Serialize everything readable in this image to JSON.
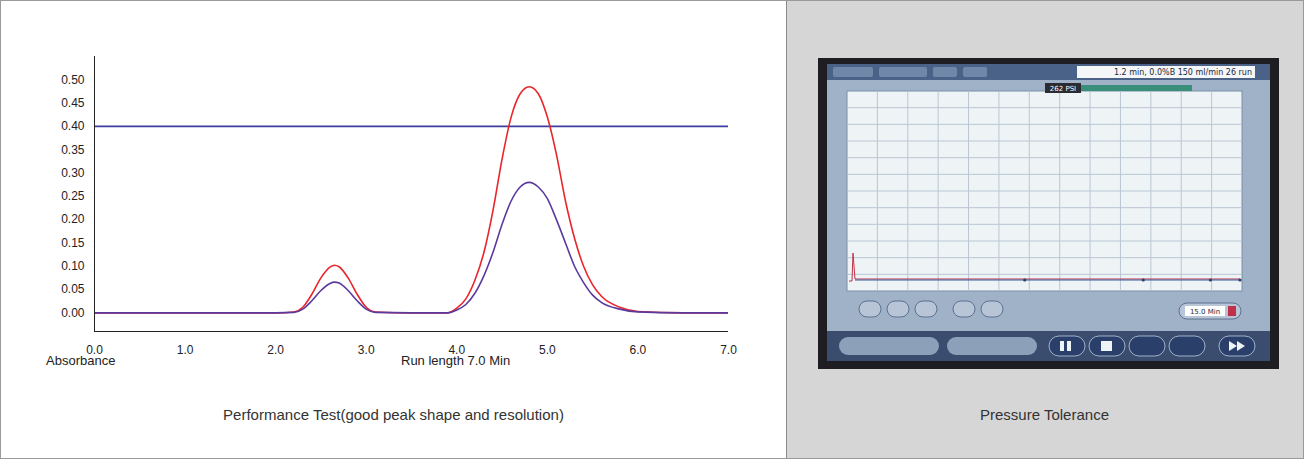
{
  "chart_data": {
    "type": "line",
    "xlabel": "Run length 7.0 Min",
    "ylabel": "Absorbance",
    "caption": "Performance Test(good peak shape and resolution)",
    "x": [
      0,
      1,
      2,
      2.2,
      2.3,
      2.4,
      2.5,
      2.6,
      2.65,
      2.7,
      2.8,
      2.9,
      3.0,
      3.1,
      3.5,
      3.9,
      4.0,
      4.1,
      4.2,
      4.3,
      4.4,
      4.5,
      4.6,
      4.7,
      4.8,
      4.9,
      5.0,
      5.1,
      5.2,
      5.3,
      5.4,
      5.5,
      5.6,
      5.8,
      6.0,
      6.5,
      7.0
    ],
    "series": [
      {
        "color": "#3d3d9e",
        "values": [
          0.4,
          0.4,
          0.4,
          0.4,
          0.4,
          0.4,
          0.4,
          0.4,
          0.4,
          0.4,
          0.4,
          0.4,
          0.4,
          0.4,
          0.4,
          0.4,
          0.4,
          0.4,
          0.4,
          0.4,
          0.4,
          0.4,
          0.4,
          0.4,
          0.4,
          0.4,
          0.4,
          0.4,
          0.4,
          0.4,
          0.4,
          0.4,
          0.4,
          0.4,
          0.4,
          0.4,
          0.4
        ]
      },
      {
        "color": "#e8262b",
        "values": [
          0,
          0,
          0,
          0.002,
          0.012,
          0.04,
          0.075,
          0.098,
          0.102,
          0.099,
          0.075,
          0.04,
          0.012,
          0.002,
          0,
          0,
          0.01,
          0.03,
          0.07,
          0.13,
          0.22,
          0.33,
          0.42,
          0.47,
          0.485,
          0.47,
          0.42,
          0.34,
          0.24,
          0.16,
          0.1,
          0.06,
          0.035,
          0.012,
          0.003,
          0,
          0
        ]
      },
      {
        "color": "#5b3a9e",
        "values": [
          0,
          0,
          0,
          0.001,
          0.008,
          0.026,
          0.048,
          0.063,
          0.066,
          0.064,
          0.048,
          0.026,
          0.008,
          0.001,
          0,
          0,
          0.006,
          0.018,
          0.042,
          0.08,
          0.13,
          0.19,
          0.24,
          0.27,
          0.28,
          0.27,
          0.245,
          0.2,
          0.15,
          0.1,
          0.065,
          0.038,
          0.022,
          0.008,
          0.002,
          0,
          0
        ]
      }
    ],
    "xlim": [
      0,
      7
    ],
    "xticks": [
      {
        "value": 0,
        "label": "0.0"
      },
      {
        "value": 1,
        "label": "1.0"
      },
      {
        "value": 2,
        "label": "2.0"
      },
      {
        "value": 3,
        "label": "3.0"
      },
      {
        "value": 4,
        "label": "4.0"
      },
      {
        "value": 5,
        "label": "5.0"
      },
      {
        "value": 6,
        "label": "6.0"
      },
      {
        "value": 7,
        "label": "7.0"
      }
    ],
    "ylim": [
      -0.04,
      0.55
    ],
    "yticks": [
      {
        "value": 0,
        "label": "0.00"
      },
      {
        "value": 0.05,
        "label": "0.05"
      },
      {
        "value": 0.1,
        "label": "0.10"
      },
      {
        "value": 0.15,
        "label": "0.15"
      },
      {
        "value": 0.2,
        "label": "0.20"
      },
      {
        "value": 0.25,
        "label": "0.25"
      },
      {
        "value": 0.3,
        "label": "0.30"
      },
      {
        "value": 0.35,
        "label": "0.35"
      },
      {
        "value": 0.4,
        "label": "0.40"
      },
      {
        "value": 0.45,
        "label": "0.45"
      },
      {
        "value": 0.5,
        "label": "0.50"
      }
    ],
    "grid": false
  },
  "screenshot": {
    "caption": "Pressure Tolerance",
    "status_bar": "1.2 min, 0.0%B 150 ml/min 26 run",
    "pressure_label": "262 PSI",
    "time_setting": "15.0 Min"
  }
}
